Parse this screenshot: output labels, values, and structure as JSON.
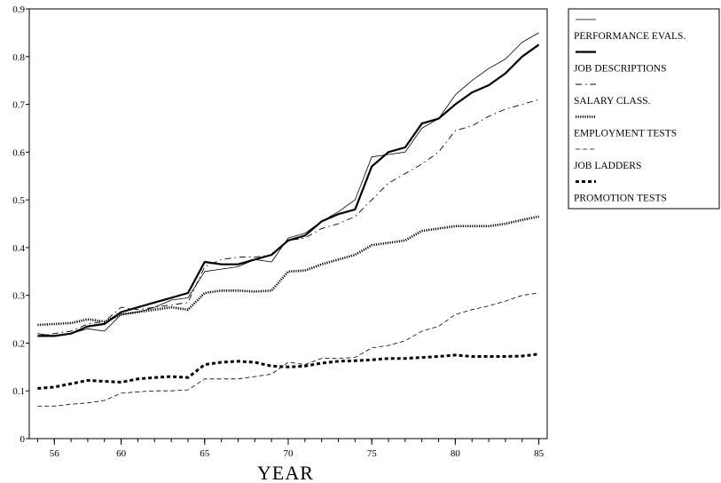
{
  "chart_data": {
    "type": "line",
    "title": "",
    "xlabel": "YEAR",
    "ylabel": "",
    "xlim": [
      54.5,
      85.5
    ],
    "ylim": [
      0,
      0.9
    ],
    "x_ticks": [
      56,
      60,
      65,
      70,
      75,
      80,
      85
    ],
    "x_tick_labels": [
      "56",
      "60",
      "65",
      "70",
      "75",
      "80",
      "85"
    ],
    "y_ticks": [
      0,
      0.1,
      0.2,
      0.3,
      0.4,
      0.5,
      0.6,
      0.7,
      0.8,
      0.9
    ],
    "y_tick_labels": [
      "0",
      "0.1",
      "0.2",
      "0.3",
      "0.4",
      "0.5",
      "0.6",
      "0.7",
      "0.8",
      "0.9"
    ],
    "grid": false,
    "legend_position": "outside-right",
    "x": [
      55,
      56,
      57,
      58,
      59,
      60,
      61,
      62,
      63,
      64,
      65,
      66,
      67,
      68,
      69,
      70,
      71,
      72,
      73,
      74,
      75,
      76,
      77,
      78,
      79,
      80,
      81,
      82,
      83,
      84,
      85
    ],
    "series": [
      {
        "name": "PERFORMANCE EVALS.",
        "style": "thin-solid",
        "color": "#000000",
        "values": [
          0.22,
          0.215,
          0.22,
          0.23,
          0.225,
          0.26,
          0.265,
          0.275,
          0.29,
          0.295,
          0.35,
          0.355,
          0.36,
          0.375,
          0.37,
          0.42,
          0.43,
          0.455,
          0.475,
          0.5,
          0.59,
          0.595,
          0.6,
          0.65,
          0.67,
          0.72,
          0.75,
          0.775,
          0.795,
          0.83,
          0.85
        ]
      },
      {
        "name": "JOB DESCRIPTIONS",
        "style": "thick-solid",
        "color": "#000000",
        "values": [
          0.215,
          0.215,
          0.22,
          0.235,
          0.24,
          0.265,
          0.275,
          0.285,
          0.295,
          0.305,
          0.37,
          0.365,
          0.365,
          0.375,
          0.385,
          0.415,
          0.425,
          0.455,
          0.47,
          0.48,
          0.57,
          0.6,
          0.61,
          0.66,
          0.67,
          0.7,
          0.725,
          0.74,
          0.765,
          0.8,
          0.825
        ]
      },
      {
        "name": "SALARY CLASS.",
        "style": "dash-dot",
        "color": "#000000",
        "values": [
          0.215,
          0.22,
          0.225,
          0.24,
          0.245,
          0.275,
          0.27,
          0.275,
          0.28,
          0.285,
          0.36,
          0.375,
          0.38,
          0.38,
          0.385,
          0.415,
          0.42,
          0.44,
          0.45,
          0.465,
          0.5,
          0.535,
          0.555,
          0.575,
          0.6,
          0.645,
          0.655,
          0.675,
          0.69,
          0.7,
          0.71
        ]
      },
      {
        "name": "EMPLOYMENT TESTS",
        "style": "dotted",
        "color": "#000000",
        "values": [
          0.238,
          0.24,
          0.242,
          0.25,
          0.245,
          0.26,
          0.265,
          0.27,
          0.275,
          0.27,
          0.305,
          0.31,
          0.31,
          0.308,
          0.31,
          0.35,
          0.352,
          0.365,
          0.375,
          0.385,
          0.405,
          0.41,
          0.415,
          0.435,
          0.44,
          0.445,
          0.445,
          0.445,
          0.45,
          0.458,
          0.465
        ]
      },
      {
        "name": "JOB LADDERS",
        "style": "thin-dashed",
        "color": "#000000",
        "values": [
          0.068,
          0.068,
          0.072,
          0.075,
          0.08,
          0.095,
          0.098,
          0.1,
          0.1,
          0.102,
          0.125,
          0.125,
          0.125,
          0.13,
          0.135,
          0.16,
          0.155,
          0.168,
          0.168,
          0.17,
          0.19,
          0.195,
          0.205,
          0.225,
          0.235,
          0.26,
          0.27,
          0.278,
          0.288,
          0.3,
          0.305
        ]
      },
      {
        "name": "PROMOTION TESTS",
        "style": "thick-dashed",
        "color": "#000000",
        "values": [
          0.105,
          0.108,
          0.115,
          0.122,
          0.12,
          0.118,
          0.125,
          0.128,
          0.13,
          0.128,
          0.155,
          0.16,
          0.162,
          0.16,
          0.152,
          0.15,
          0.152,
          0.158,
          0.162,
          0.163,
          0.165,
          0.168,
          0.168,
          0.17,
          0.172,
          0.175,
          0.172,
          0.172,
          0.172,
          0.173,
          0.177
        ]
      }
    ]
  }
}
